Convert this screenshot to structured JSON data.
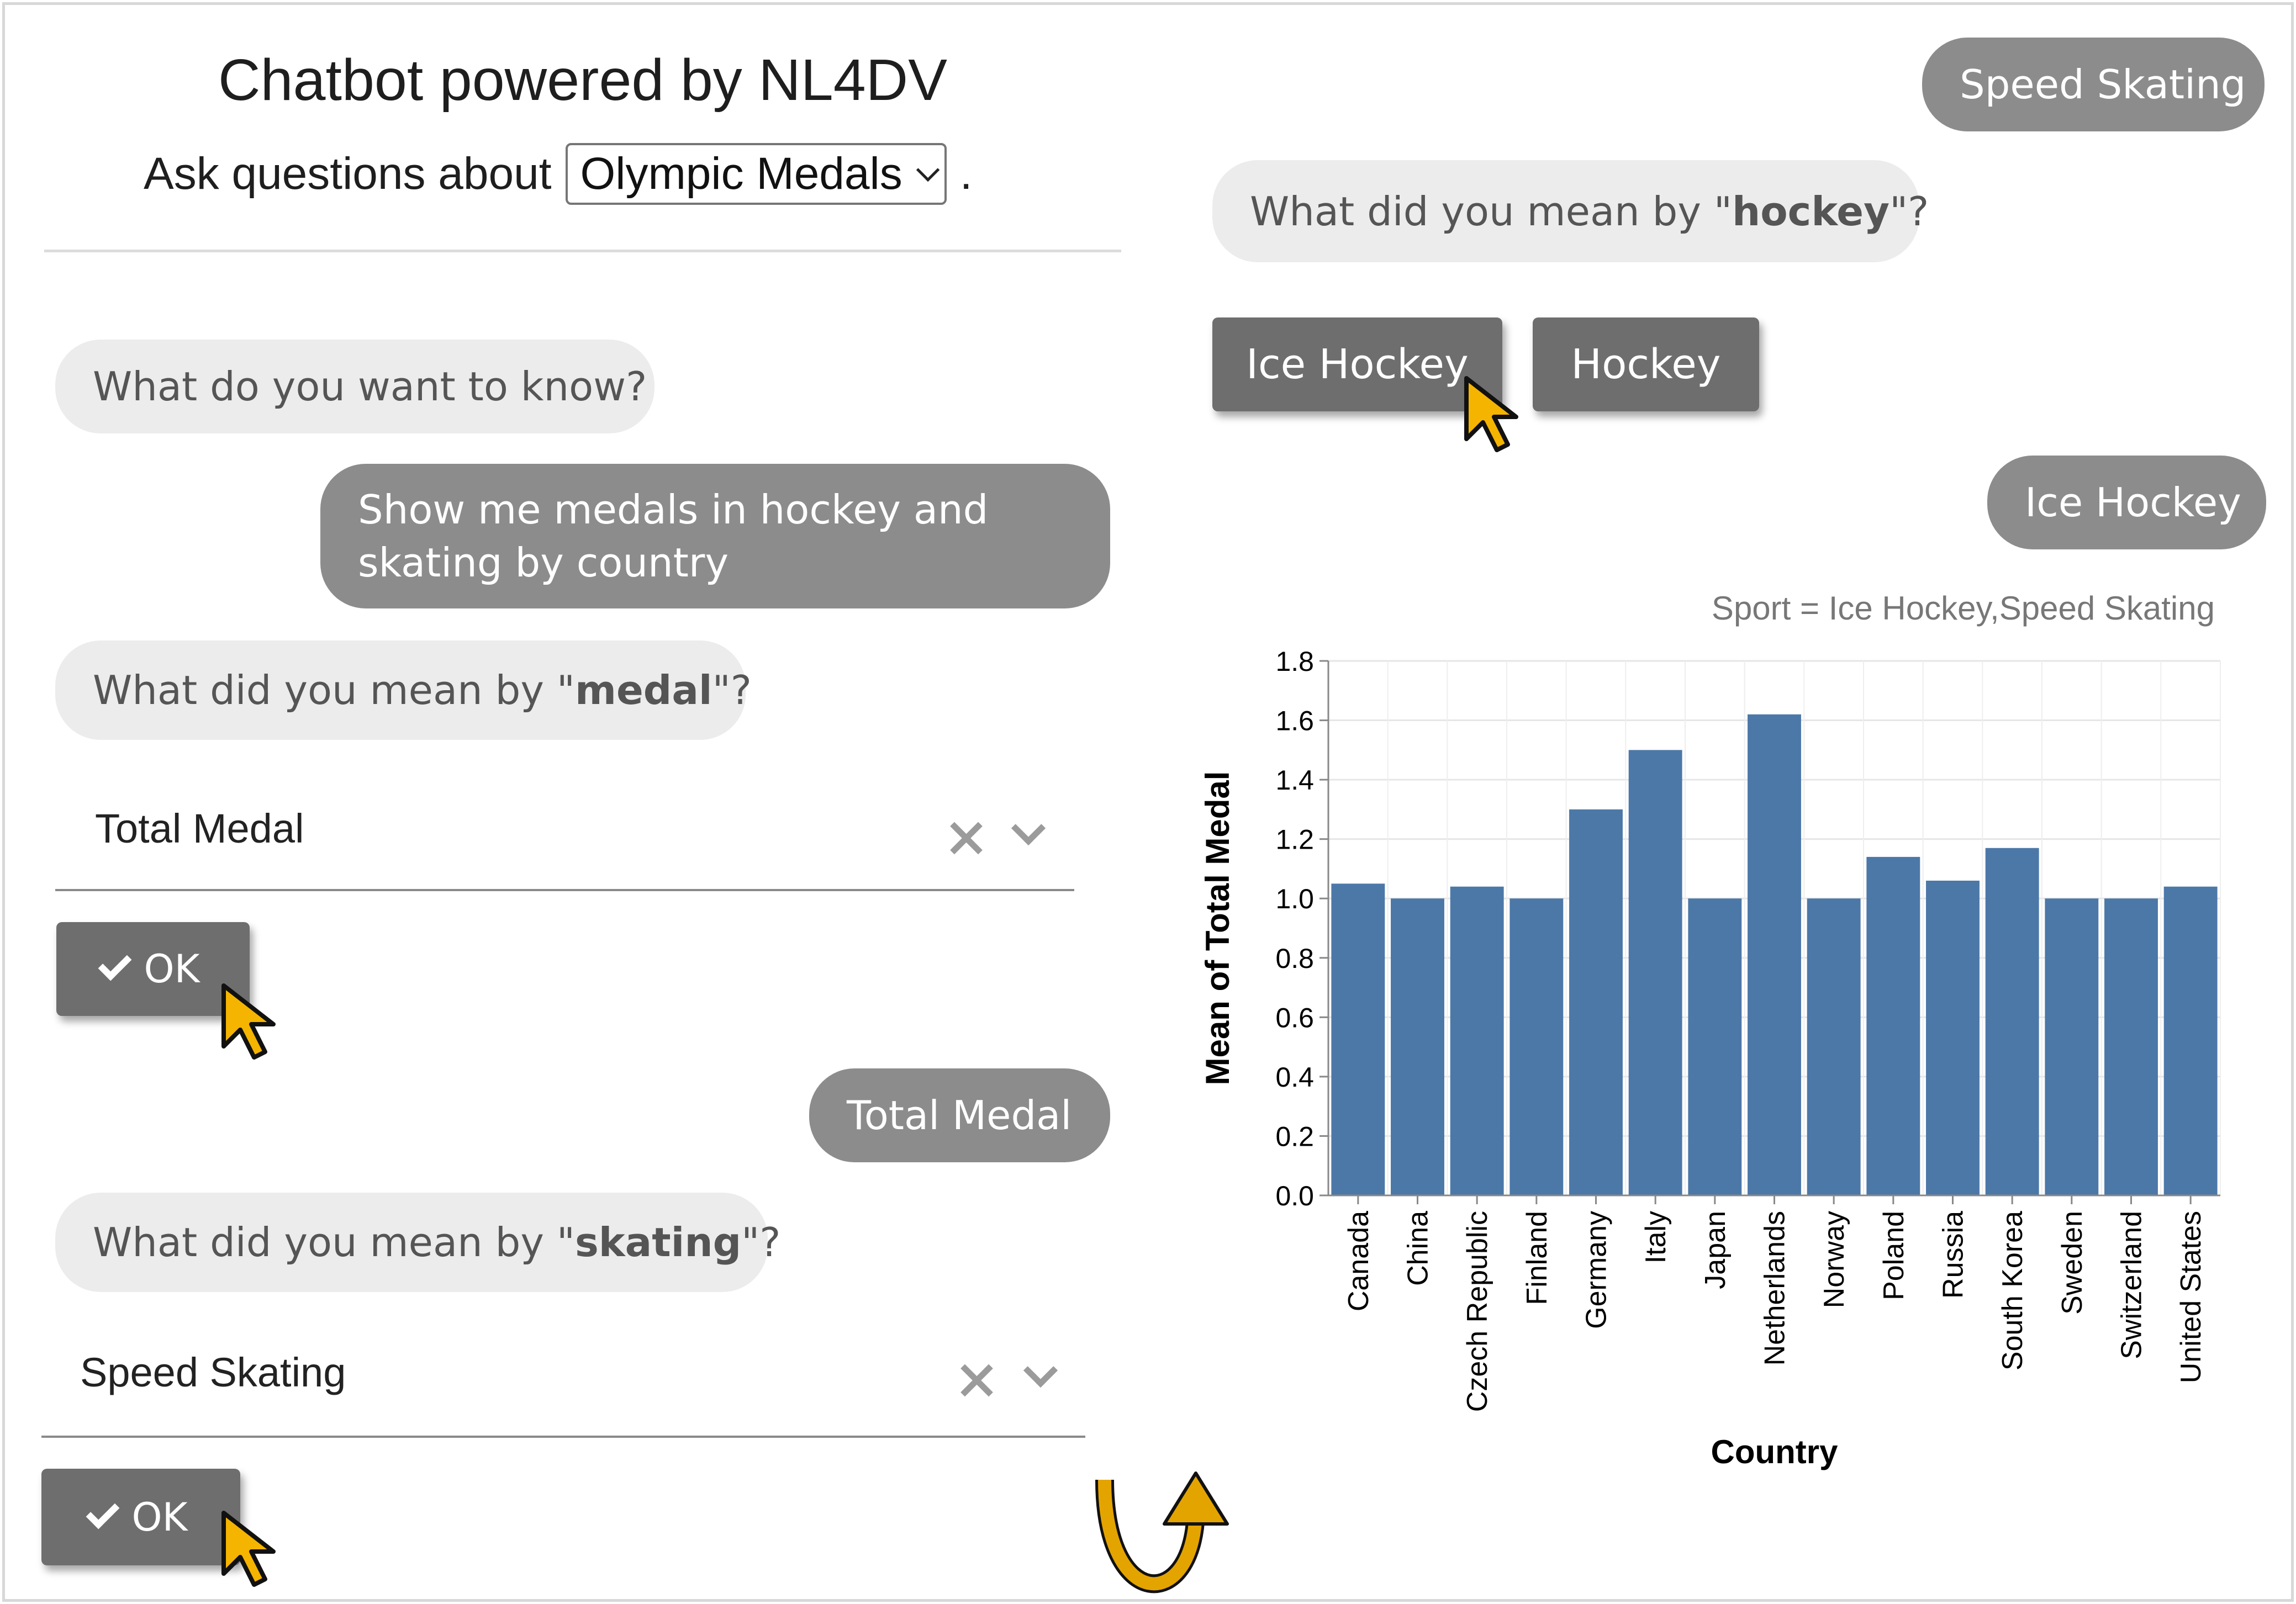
{
  "header": {
    "title": "Chatbot powered by NL4DV",
    "ask_label": "Ask questions about",
    "dataset_selected": "Olympic Medals",
    "period": "."
  },
  "left_chat": {
    "bot_q1": "What do you want to know?",
    "user_query": "Show me medals in hockey and skating by country",
    "bot_q2": {
      "prefix": "What did you mean by \"",
      "keyword": "medal",
      "suffix": "\"?"
    },
    "medal_field_value": "Total Medal",
    "ok_label_1": "OK",
    "user_answer_1": "Total Medal",
    "bot_q3": {
      "prefix": "What did you mean by \"",
      "keyword": "skating",
      "suffix": "\"?"
    },
    "skating_field_value": "Speed Skating",
    "ok_label_2": "OK"
  },
  "right_chat": {
    "user_answer_2": "Speed Skating",
    "bot_q4": {
      "prefix": "What did you mean by \"",
      "keyword": "hockey",
      "suffix": "\"?"
    },
    "options": [
      "Ice Hockey",
      "Hockey"
    ],
    "user_answer_3": "Ice Hockey"
  },
  "icons": {
    "clear": "close-icon",
    "dropdown": "chevron-down-icon",
    "check": "check-icon",
    "cursor": "cursor-arrow-icon",
    "flow": "curved-arrow-icon"
  },
  "colors": {
    "bar": "#4c78a8",
    "cursor": "#f5b400",
    "user_bubble": "#8c8c8c",
    "bot_bubble": "#ececec",
    "button": "#6e6e6e"
  },
  "chart_data": {
    "type": "bar",
    "filter_title": "Sport = Ice Hockey,Speed Skating",
    "xlabel": "Country",
    "ylabel": "Mean of Total Medal",
    "ylim": [
      0,
      1.8
    ],
    "yticks": [
      "0.0",
      "0.2",
      "0.4",
      "0.6",
      "0.8",
      "1.0",
      "1.2",
      "1.4",
      "1.6",
      "1.8"
    ],
    "categories": [
      "Canada",
      "China",
      "Czech Republic",
      "Finland",
      "Germany",
      "Italy",
      "Japan",
      "Netherlands",
      "Norway",
      "Poland",
      "Russia",
      "South Korea",
      "Sweden",
      "Switzerland",
      "United States"
    ],
    "values": [
      1.05,
      1.0,
      1.04,
      1.0,
      1.3,
      1.5,
      1.0,
      1.62,
      1.0,
      1.14,
      1.06,
      1.17,
      1.0,
      1.0,
      1.04
    ],
    "grid": true
  }
}
